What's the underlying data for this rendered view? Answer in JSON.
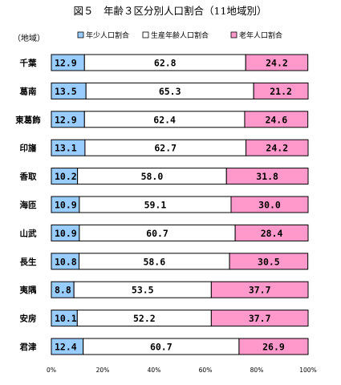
{
  "chart_data": {
    "type": "bar",
    "orientation": "horizontal",
    "stacked": true,
    "title": "図５　年齢３区分別人口割合（11地域別）",
    "category_axis_label": "（地域）",
    "categories": [
      "千葉",
      "葛南",
      "東葛飾",
      "印旛",
      "香取",
      "海匝",
      "山武",
      "長生",
      "夷隅",
      "安房",
      "君津"
    ],
    "series": [
      {
        "name": "年少人口割合",
        "color": "#99ccff",
        "values": [
          12.9,
          13.5,
          12.9,
          13.1,
          10.2,
          10.9,
          10.9,
          10.8,
          8.8,
          10.1,
          12.4
        ]
      },
      {
        "name": "生産年齢人口割合",
        "color": "#ffffff",
        "values": [
          62.8,
          65.3,
          62.4,
          62.7,
          58.0,
          59.1,
          60.7,
          58.6,
          53.5,
          52.2,
          60.7
        ]
      },
      {
        "name": "老年人口割合",
        "color": "#ff99cc",
        "values": [
          24.2,
          21.2,
          24.6,
          24.2,
          31.8,
          30.0,
          28.4,
          30.5,
          37.7,
          37.7,
          26.9
        ]
      }
    ],
    "xlim": [
      0,
      100
    ],
    "xticks": [
      "0%",
      "20%",
      "40%",
      "60%",
      "80%",
      "100%"
    ],
    "legend_position": "top",
    "grid": false
  }
}
